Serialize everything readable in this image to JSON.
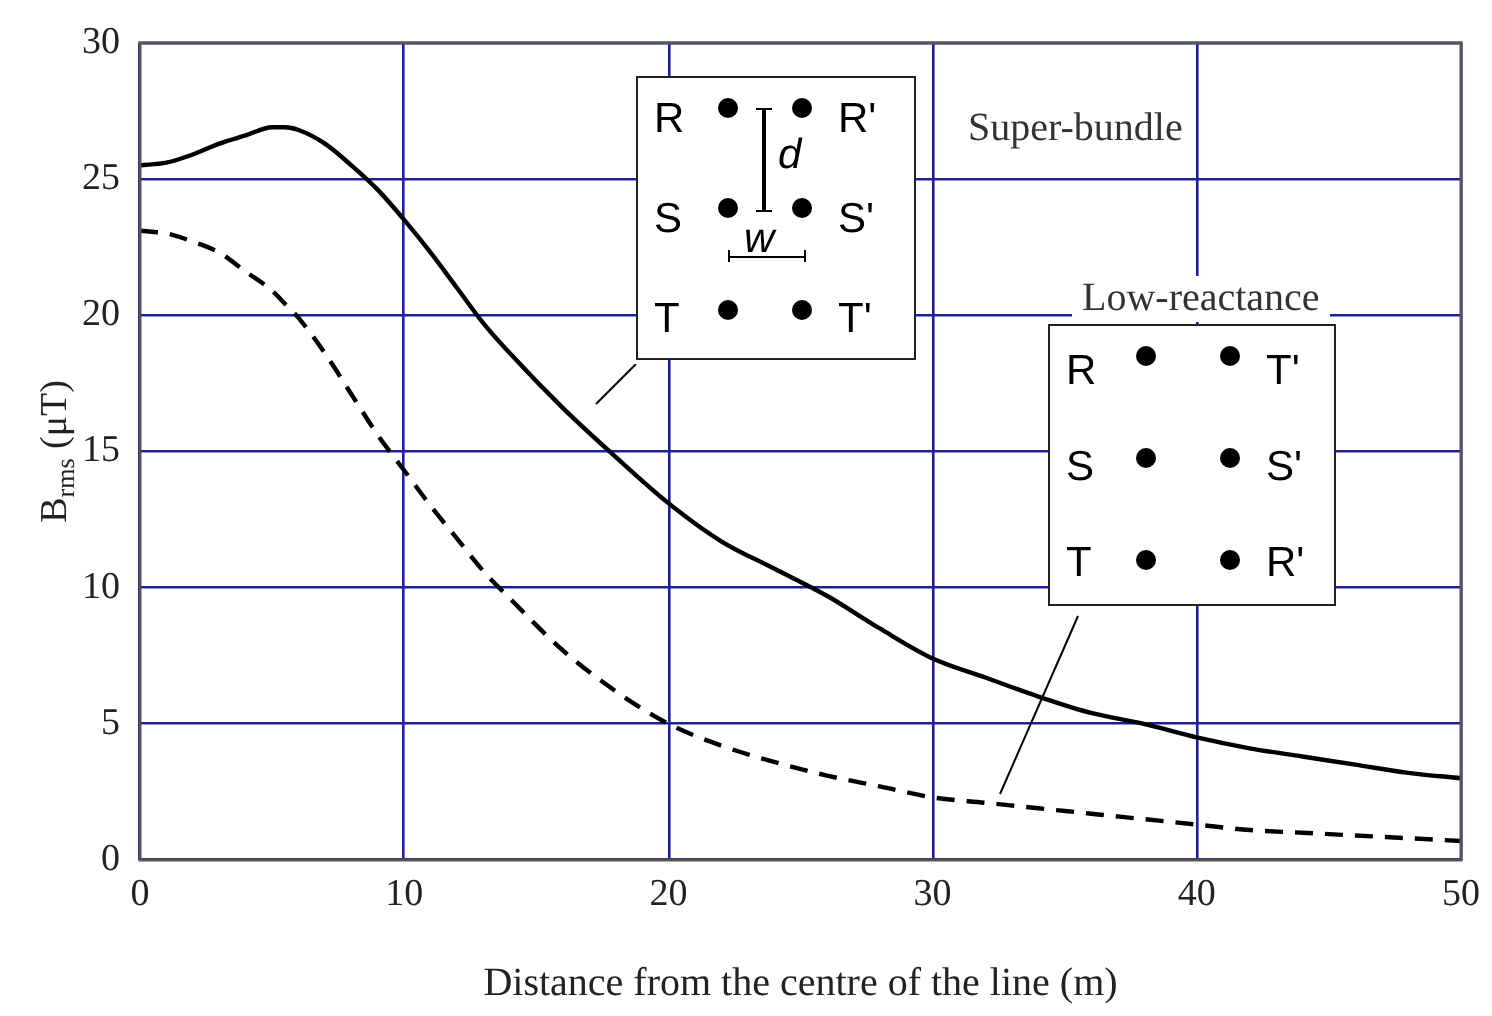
{
  "chart_data": {
    "type": "line",
    "xlabel": "Distance from the centre of the line (m)",
    "ylabel": "B$_{rms}$ (μT)",
    "x": [
      0,
      1,
      2,
      3,
      4,
      5,
      5.5,
      6,
      7,
      8,
      9,
      10,
      11,
      12,
      13,
      14,
      16,
      18,
      20,
      22,
      24,
      26,
      28,
      30,
      32,
      34,
      36,
      38,
      40,
      42,
      44,
      46,
      48,
      50
    ],
    "series": [
      {
        "color": "#000000",
        "line_style": "solid",
        "values": [
          25.5,
          25.6,
          25.9,
          26.3,
          26.6,
          26.9,
          26.9,
          26.8,
          26.3,
          25.5,
          24.6,
          23.5,
          22.3,
          21.0,
          19.7,
          18.6,
          16.6,
          14.8,
          13.1,
          11.7,
          10.7,
          9.7,
          8.5,
          7.4,
          6.7,
          6.0,
          5.4,
          5.0,
          4.5,
          4.1,
          3.8,
          3.5,
          3.2,
          3.0
        ]
      },
      {
        "color": "#000000",
        "line_style": "dashed",
        "values": [
          23.1,
          23.0,
          22.7,
          22.3,
          21.6,
          20.9,
          20.4,
          19.9,
          18.6,
          17.1,
          15.6,
          14.3,
          13.0,
          11.8,
          10.6,
          9.6,
          7.7,
          6.2,
          5.0,
          4.2,
          3.6,
          3.1,
          2.7,
          2.3,
          2.1,
          1.9,
          1.7,
          1.5,
          1.3,
          1.1,
          1.0,
          0.9,
          0.8,
          0.7
        ]
      }
    ],
    "xlim": [
      0,
      50
    ],
    "xticks": [
      0,
      10,
      20,
      30,
      40,
      50
    ],
    "ylim": [
      0,
      30
    ],
    "yticks": [
      0,
      5,
      10,
      15,
      20,
      25,
      30
    ],
    "grid": true,
    "legend": false,
    "marker": "none",
    "annotations": [
      "Super-bundle",
      "Low-reactance",
      "R",
      "R'",
      "d",
      "S",
      "S'",
      "w",
      "T",
      "T'",
      "R",
      "T'",
      "S",
      "S'",
      "T",
      "R'"
    ]
  }
}
